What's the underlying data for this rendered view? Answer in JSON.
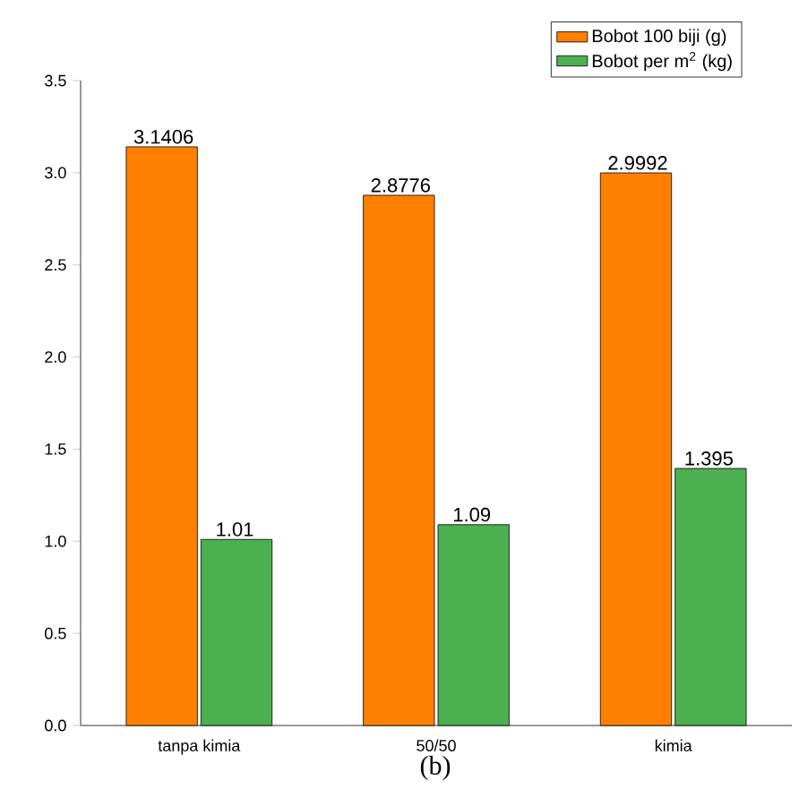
{
  "chart_data": {
    "type": "bar",
    "categories": [
      "tanpa kimia",
      "50/50",
      "kimia"
    ],
    "series": [
      {
        "name": "Bobot 100 biji (g)",
        "color": "#ff8000",
        "values": [
          3.1406,
          2.8776,
          2.9992
        ]
      },
      {
        "name": "Bobot per m$^{2}$ (kg)",
        "color": "#4caf50",
        "values": [
          1.01,
          1.09,
          1.395
        ]
      }
    ],
    "ylim": [
      0,
      3.5
    ],
    "yticks": [
      {
        "value": 0,
        "label": "0.0"
      },
      {
        "value": 0.5,
        "label": "0.5"
      },
      {
        "value": 1,
        "label": "1.0"
      },
      {
        "value": 1.5,
        "label": "1.5"
      },
      {
        "value": 2,
        "label": "2.0"
      },
      {
        "value": 2.5,
        "label": "2.5"
      },
      {
        "value": 3,
        "label": "3.0"
      },
      {
        "value": 3.5,
        "label": "3.5"
      }
    ],
    "data_labels": true,
    "legend": "top right",
    "grid": false,
    "annotations": [
      "(b)"
    ]
  }
}
